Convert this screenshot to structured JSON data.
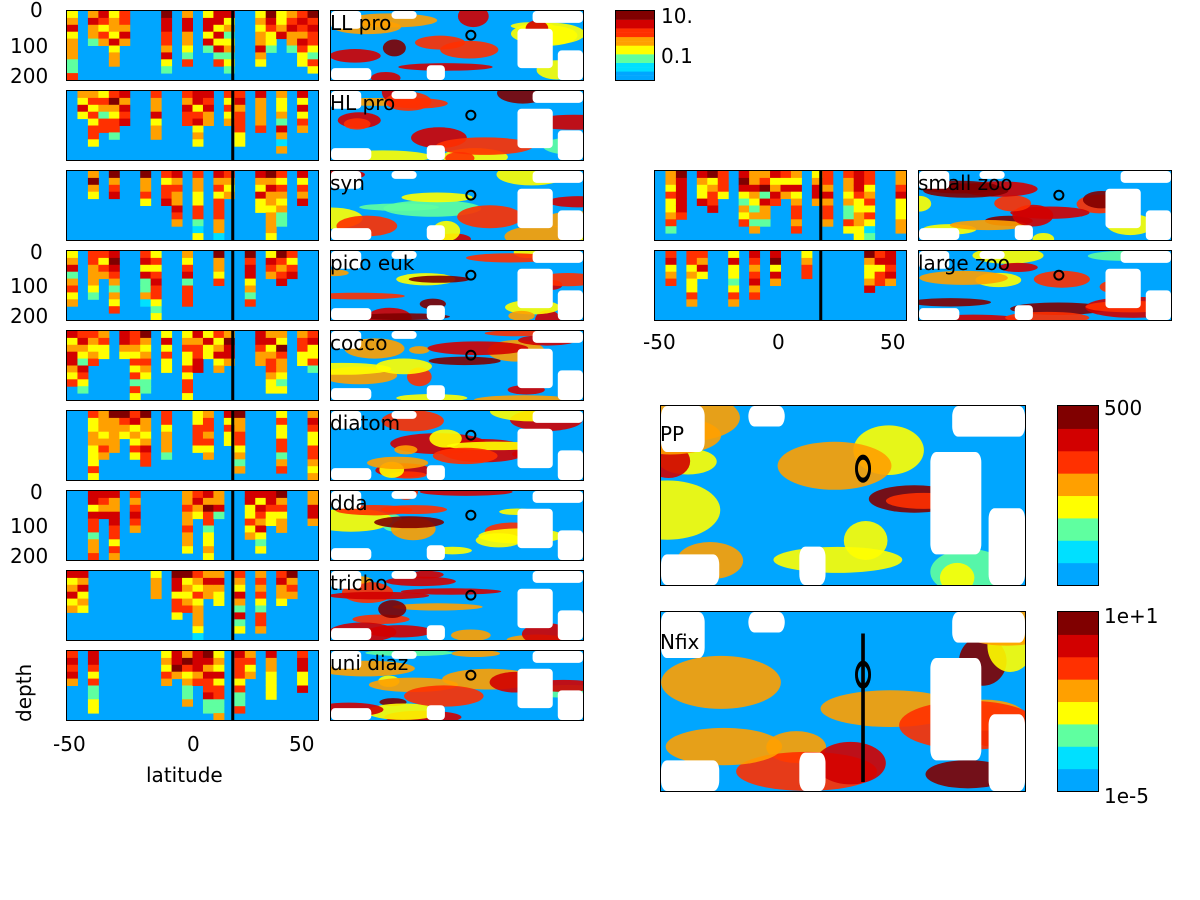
{
  "left_sections": [
    {
      "id": "ll-pro",
      "label": "LL pro"
    },
    {
      "id": "hl-pro",
      "label": "HL pro"
    },
    {
      "id": "syn",
      "label": "syn"
    },
    {
      "id": "pico-euk",
      "label": "pico euk"
    },
    {
      "id": "cocco",
      "label": "cocco"
    },
    {
      "id": "diatom",
      "label": "diatom"
    },
    {
      "id": "dda",
      "label": "dda"
    },
    {
      "id": "tricho",
      "label": "tricho"
    },
    {
      "id": "uni-diaz",
      "label": "uni diaz"
    }
  ],
  "right_sections": [
    {
      "id": "small-zoo",
      "label": "small zoo"
    },
    {
      "id": "large-zoo",
      "label": "large zoo"
    }
  ],
  "depth_ticks": [
    "0",
    "100",
    "200"
  ],
  "lat_ticks": [
    "-50",
    "0",
    "50"
  ],
  "xlabel": "latitude",
  "ylabel": "depth",
  "large_maps": [
    {
      "id": "pp",
      "label": "PP"
    },
    {
      "id": "nfix",
      "label": "Nfix"
    }
  ],
  "colorbars": {
    "small": {
      "top": "10.",
      "mid": "0.1"
    },
    "pp": {
      "top": "500"
    },
    "nfix": {
      "top": "1e+1",
      "bottom": "1e-5"
    }
  },
  "colors": {
    "background_low": "#00a6ff",
    "high": "#d20000",
    "darkest": "#800000"
  },
  "chart_data": {
    "type": "heatmap",
    "panels": [
      "LL pro",
      "HL pro",
      "syn",
      "pico euk",
      "cocco",
      "diatom",
      "dda",
      "tricho",
      "uni diaz",
      "small zoo",
      "large zoo",
      "PP",
      "Nfix"
    ],
    "x_axis": {
      "label": "latitude",
      "ticks": [
        -50,
        0,
        50
      ]
    },
    "y_axis": {
      "label": "depth",
      "ticks": [
        0,
        100,
        200
      ],
      "reversed": true
    },
    "marker_latitude": 22,
    "colorscale": [
      "#00a6ff",
      "#00e0ff",
      "#5fffa0",
      "#ffff00",
      "#ffa000",
      "#ff3000",
      "#d20000",
      "#800000"
    ]
  }
}
